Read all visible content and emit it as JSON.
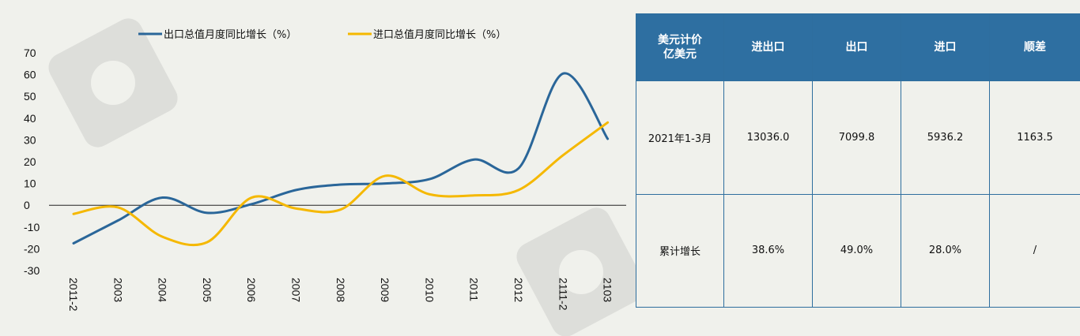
{
  "chart_data": {
    "type": "line",
    "categories": [
      "2011-2",
      "2003",
      "2004",
      "2005",
      "2006",
      "2007",
      "2008",
      "2009",
      "2010",
      "2011",
      "2012",
      "2111-2",
      "2103"
    ],
    "yticks": [
      "70",
      "60",
      "50",
      "40",
      "30",
      "20",
      "10",
      "0",
      "-10",
      "-20",
      "-30"
    ],
    "ylim": [
      -30,
      70
    ],
    "series": [
      {
        "name": "出口总值月度同比增长（%）",
        "color": "#2a6699",
        "values": [
          -17.5,
          -7,
          3.5,
          -3.5,
          0.5,
          7,
          9.5,
          10,
          12,
          21,
          17,
          60.5,
          30.5
        ]
      },
      {
        "name": "进口总值月度同比增长（%）",
        "color": "#f5b800",
        "values": [
          -4,
          -1,
          -14.5,
          -17,
          3.5,
          -1.5,
          -2,
          13.5,
          5,
          4.5,
          7,
          23,
          38
        ]
      }
    ]
  },
  "table": {
    "header": [
      "美元计价\n亿美元",
      "进出口",
      "出口",
      "进口",
      "顺差"
    ],
    "rows": [
      [
        "2021年1-3月",
        "13036.0",
        "7099.8",
        "5936.2",
        "1163.5"
      ],
      [
        "累计增长",
        "38.6%",
        "49.0%",
        "28.0%",
        "/"
      ]
    ]
  },
  "colors": {
    "table_header_bg": "#2e6fa1",
    "border": "#2e6e9e",
    "background": "#f0f1ec"
  }
}
